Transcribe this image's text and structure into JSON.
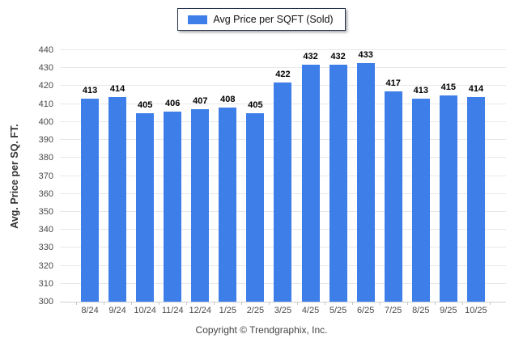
{
  "legend": {
    "label": "Avg Price per SQFT (Sold)",
    "swatch_color": "#3e7ee9"
  },
  "chart_data": {
    "type": "bar",
    "categories": [
      "8/24",
      "9/24",
      "10/24",
      "11/24",
      "12/24",
      "1/25",
      "2/25",
      "3/25",
      "4/25",
      "5/25",
      "6/25",
      "7/25",
      "8/25",
      "9/25",
      "10/25"
    ],
    "values": [
      413,
      414,
      405,
      406,
      407,
      408,
      405,
      422,
      432,
      432,
      433,
      417,
      413,
      415,
      414
    ],
    "series_name": "Avg Price per SQFT (Sold)",
    "title": "",
    "xlabel": "",
    "ylabel": "Avg. Price per SQ. FT.",
    "ylim": [
      300,
      440
    ],
    "ytick_step": 10,
    "bar_color": "#3e7ee9",
    "grid": true,
    "legend_position": "top-center",
    "value_labels": true
  },
  "footer": {
    "text": "Copyright © Trendgraphix, Inc."
  }
}
